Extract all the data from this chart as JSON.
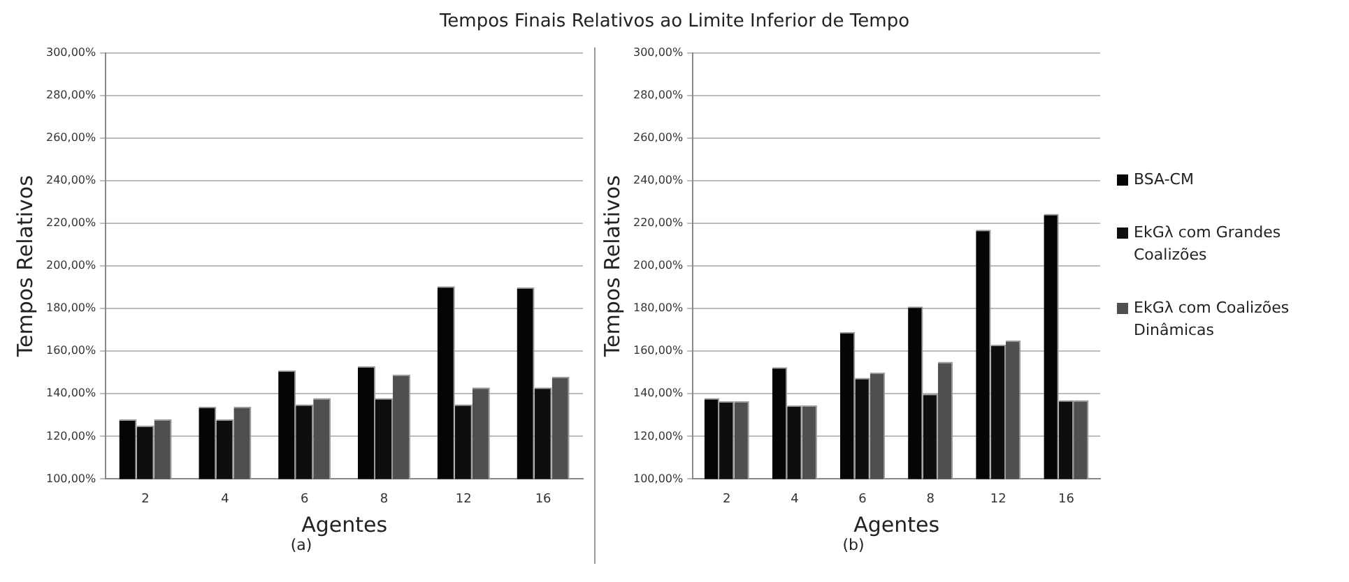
{
  "chart_data": [
    {
      "type": "bar",
      "title": "Tempos Finais Relativos ao Limite Inferior de Tempo",
      "xlabel": "Agentes",
      "ylabel": "Tempos Relativos",
      "annotations": [
        "(a)"
      ],
      "categories": [
        "2",
        "4",
        "6",
        "8",
        "12",
        "16"
      ],
      "series": [
        {
          "color": "#050505",
          "values": [
            128,
            134,
            151,
            153,
            190.5,
            190
          ]
        },
        {
          "color": "#0d0f0c",
          "values": [
            125,
            128,
            135,
            138,
            135,
            143
          ]
        },
        {
          "color": "#4f4f4f",
          "values": [
            128,
            134,
            138,
            149,
            143,
            148
          ]
        }
      ],
      "ylim": [
        100,
        300
      ],
      "yticks": [
        {
          "value": 100,
          "label": "100,00%"
        },
        {
          "value": 120,
          "label": "120,00%"
        },
        {
          "value": 140,
          "label": "140,00%"
        },
        {
          "value": 160,
          "label": "160,00%"
        },
        {
          "value": 180,
          "label": "180,00%"
        },
        {
          "value": 200,
          "label": "200,00%"
        },
        {
          "value": 220,
          "label": "220,00%"
        },
        {
          "value": 240,
          "label": "240,00%"
        },
        {
          "value": 260,
          "label": "260,00%"
        },
        {
          "value": 280,
          "label": "280,00%"
        },
        {
          "value": 300,
          "label": "300,00%"
        }
      ],
      "grid": "y",
      "legend": false
    },
    {
      "type": "bar",
      "xlabel": "Agentes",
      "ylabel": "Tempos Relativos",
      "annotations": [
        "(b)"
      ],
      "categories": [
        "2",
        "4",
        "6",
        "8",
        "12",
        "16"
      ],
      "series": [
        {
          "name": "BSA-CM",
          "color": "#050505",
          "values": [
            138,
            152.5,
            169,
            181,
            217,
            224.5
          ]
        },
        {
          "name": "EkGλ com Grandes Coalizões",
          "color": "#0d0f0c",
          "values": [
            136.5,
            134.5,
            147.5,
            140,
            163,
            137
          ]
        },
        {
          "name": "EkGλ com Coalizões Dinâmicas",
          "color": "#4f4f4f",
          "values": [
            136.5,
            134.5,
            150,
            155,
            165,
            137
          ]
        }
      ],
      "ylim": [
        100,
        300
      ],
      "yticks": [
        {
          "value": 100,
          "label": "100,00%"
        },
        {
          "value": 120,
          "label": "120,00%"
        },
        {
          "value": 140,
          "label": "140,00%"
        },
        {
          "value": 160,
          "label": "160,00%"
        },
        {
          "value": 180,
          "label": "180,00%"
        },
        {
          "value": 200,
          "label": "200,00%"
        },
        {
          "value": 220,
          "label": "220,00%"
        },
        {
          "value": 240,
          "label": "240,00%"
        },
        {
          "value": 260,
          "label": "260,00%"
        },
        {
          "value": 280,
          "label": "280,00%"
        },
        {
          "value": 300,
          "label": "300,00%"
        }
      ],
      "grid": "y",
      "legend": "right"
    }
  ]
}
